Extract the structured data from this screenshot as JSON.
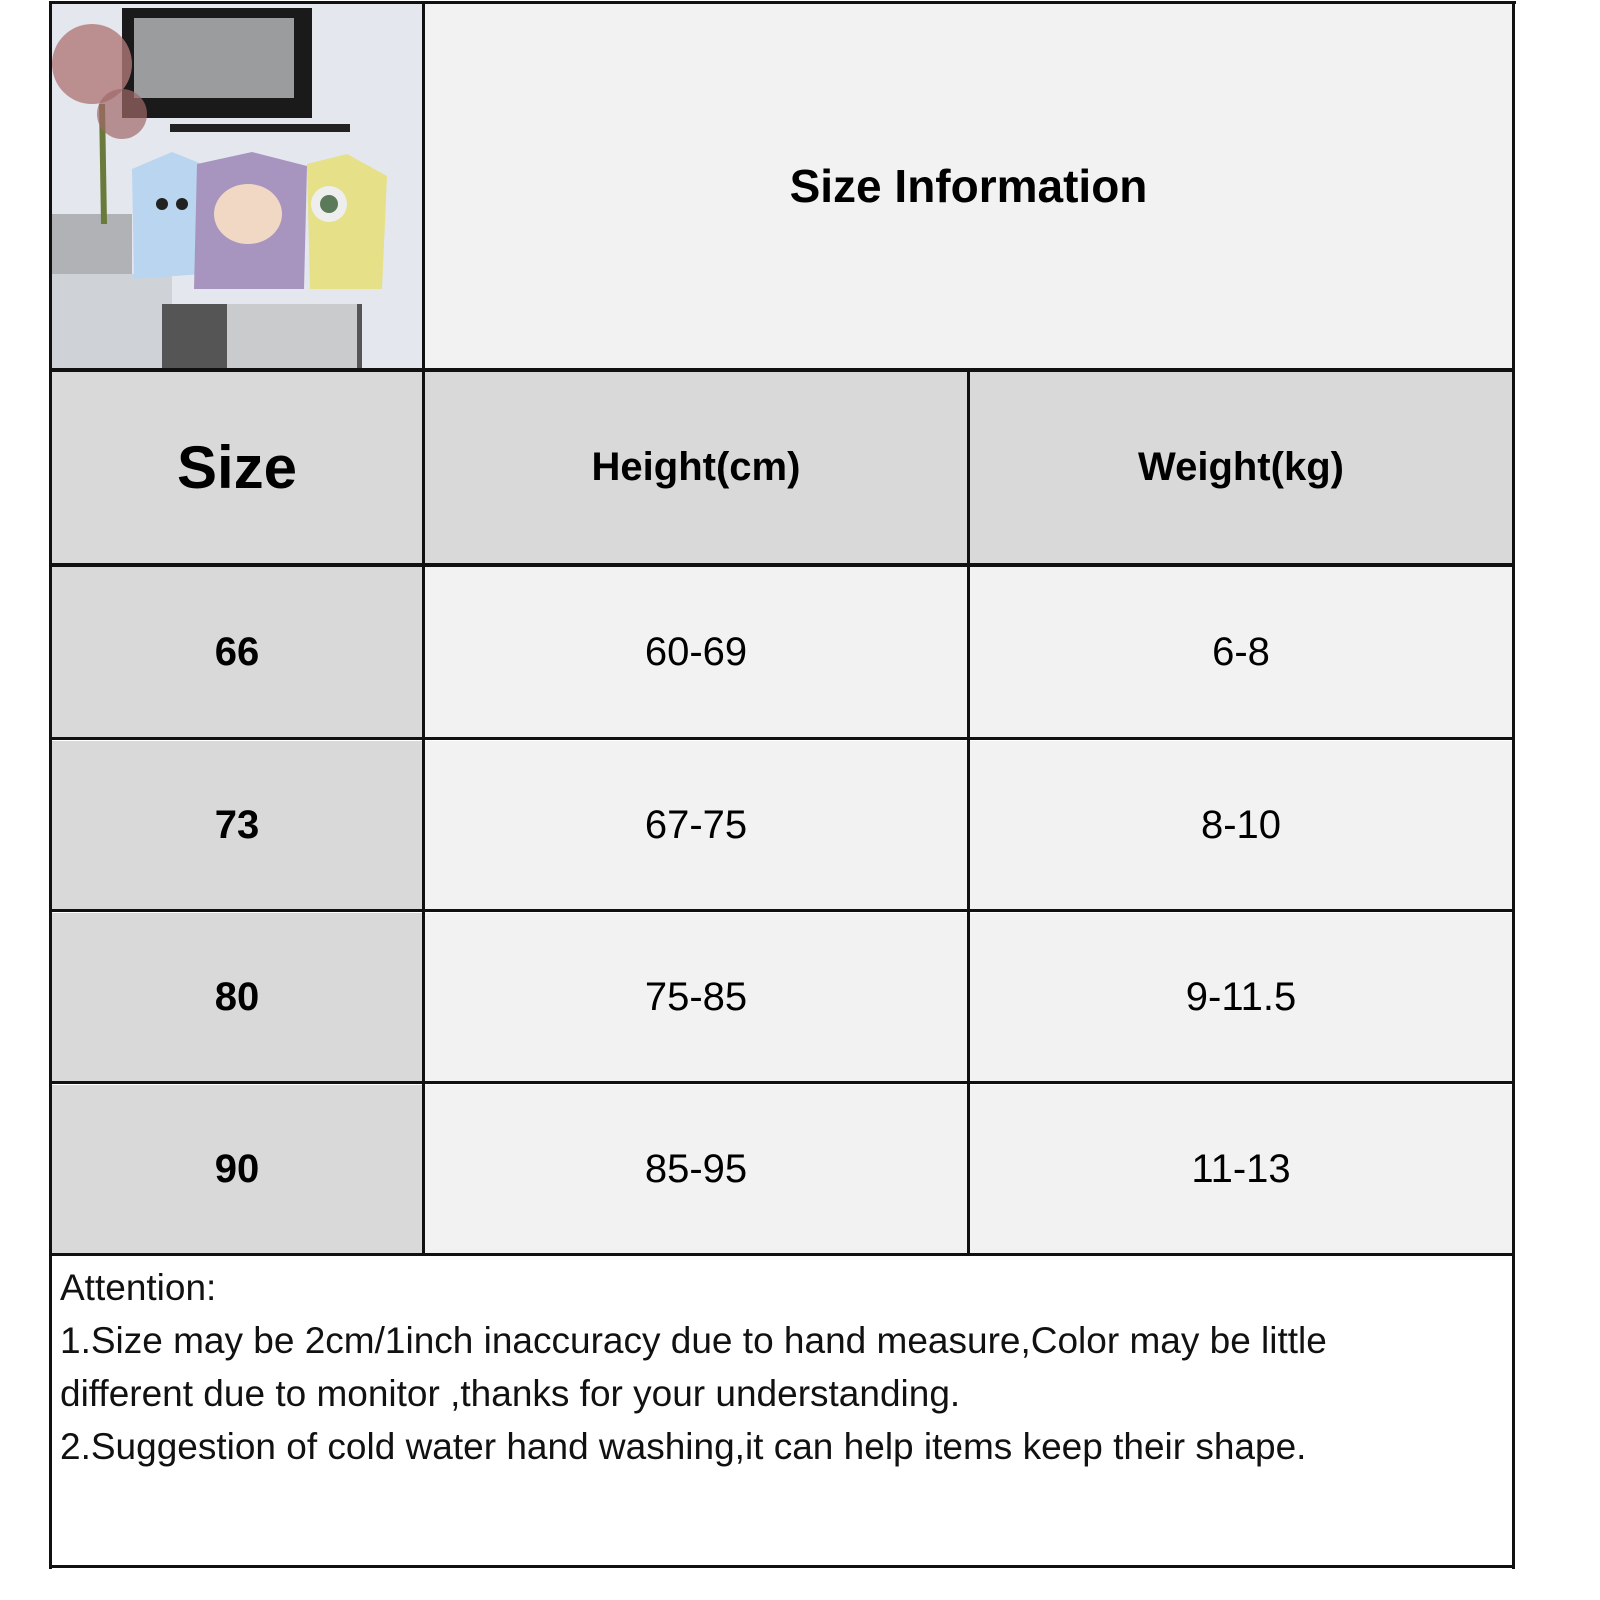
{
  "title": "Size Information",
  "product_image": {
    "description_icon": "product-photo-rompers"
  },
  "table": {
    "headers": [
      "Size",
      "Height(cm)",
      "Weight(kg)"
    ],
    "rows": [
      [
        "66",
        "60-69",
        "6-8"
      ],
      [
        "73",
        "67-75",
        "8-10"
      ],
      [
        "80",
        "75-85",
        "9-11.5"
      ],
      [
        "90",
        "85-95",
        "11-13"
      ]
    ]
  },
  "notes": {
    "heading": "Attention:",
    "line1a": "1.Size may be 2cm/1inch inaccuracy due to hand measure,Color may be little",
    "line1b": "different due to monitor ,thanks for your understanding.",
    "line2": "2.Suggestion of cold water hand washing,it can help items keep their shape."
  },
  "colors": {
    "header_bg": "#d9d9d9",
    "cell_bg": "#f2f2f2",
    "border": "#111111"
  }
}
